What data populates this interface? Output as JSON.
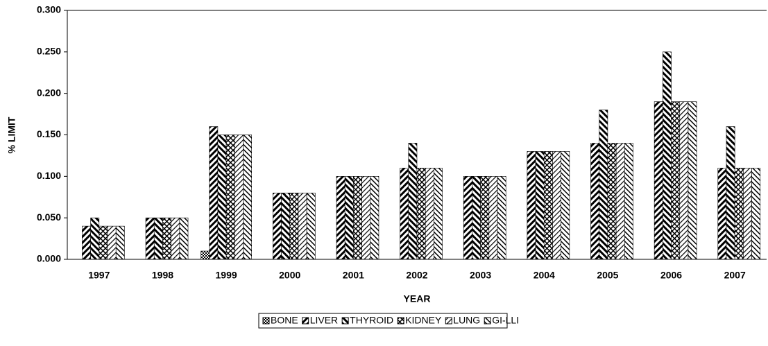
{
  "chart_data": {
    "type": "bar",
    "x_label": "YEAR",
    "y_label": "% LIMIT",
    "categories": [
      "1997",
      "1998",
      "1999",
      "2000",
      "2001",
      "2002",
      "2003",
      "2004",
      "2005",
      "2006",
      "2007"
    ],
    "series": [
      {
        "name": "BONE",
        "color": "#000000",
        "values": [
          0,
          0,
          0.01,
          0,
          0,
          0,
          0,
          0,
          0,
          0,
          0
        ]
      },
      {
        "name": "LIVER",
        "color": "#000000",
        "values": [
          0.04,
          0.05,
          0.16,
          0.08,
          0.1,
          0.11,
          0.1,
          0.13,
          0.14,
          0.19,
          0.11
        ]
      },
      {
        "name": "THYROID",
        "color": "#000000",
        "values": [
          0.05,
          0.05,
          0.15,
          0.08,
          0.1,
          0.14,
          0.1,
          0.13,
          0.18,
          0.25,
          0.16
        ]
      },
      {
        "name": "KIDNEY",
        "color": "#000000",
        "values": [
          0.04,
          0.05,
          0.15,
          0.08,
          0.1,
          0.11,
          0.1,
          0.13,
          0.14,
          0.19,
          0.11
        ]
      },
      {
        "name": "LUNG",
        "color": "#000000",
        "values": [
          0.04,
          0.05,
          0.15,
          0.08,
          0.1,
          0.11,
          0.1,
          0.13,
          0.14,
          0.19,
          0.11
        ]
      },
      {
        "name": "GI-LLI",
        "color": "#000000",
        "values": [
          0.04,
          0.05,
          0.15,
          0.08,
          0.1,
          0.11,
          0.1,
          0.13,
          0.14,
          0.19,
          0.11
        ]
      }
    ],
    "ylim": [
      0,
      0.3
    ],
    "yticks": [
      {
        "value": 0,
        "label": "0.000"
      },
      {
        "value": 0.05,
        "label": "0.050"
      },
      {
        "value": 0.1,
        "label": "0.100"
      },
      {
        "value": 0.15,
        "label": "0.150"
      },
      {
        "value": 0.2,
        "label": "0.200"
      },
      {
        "value": 0.25,
        "label": "0.250"
      },
      {
        "value": 0.3,
        "label": "0.300"
      }
    ],
    "legend": "bottom",
    "grid": false
  }
}
